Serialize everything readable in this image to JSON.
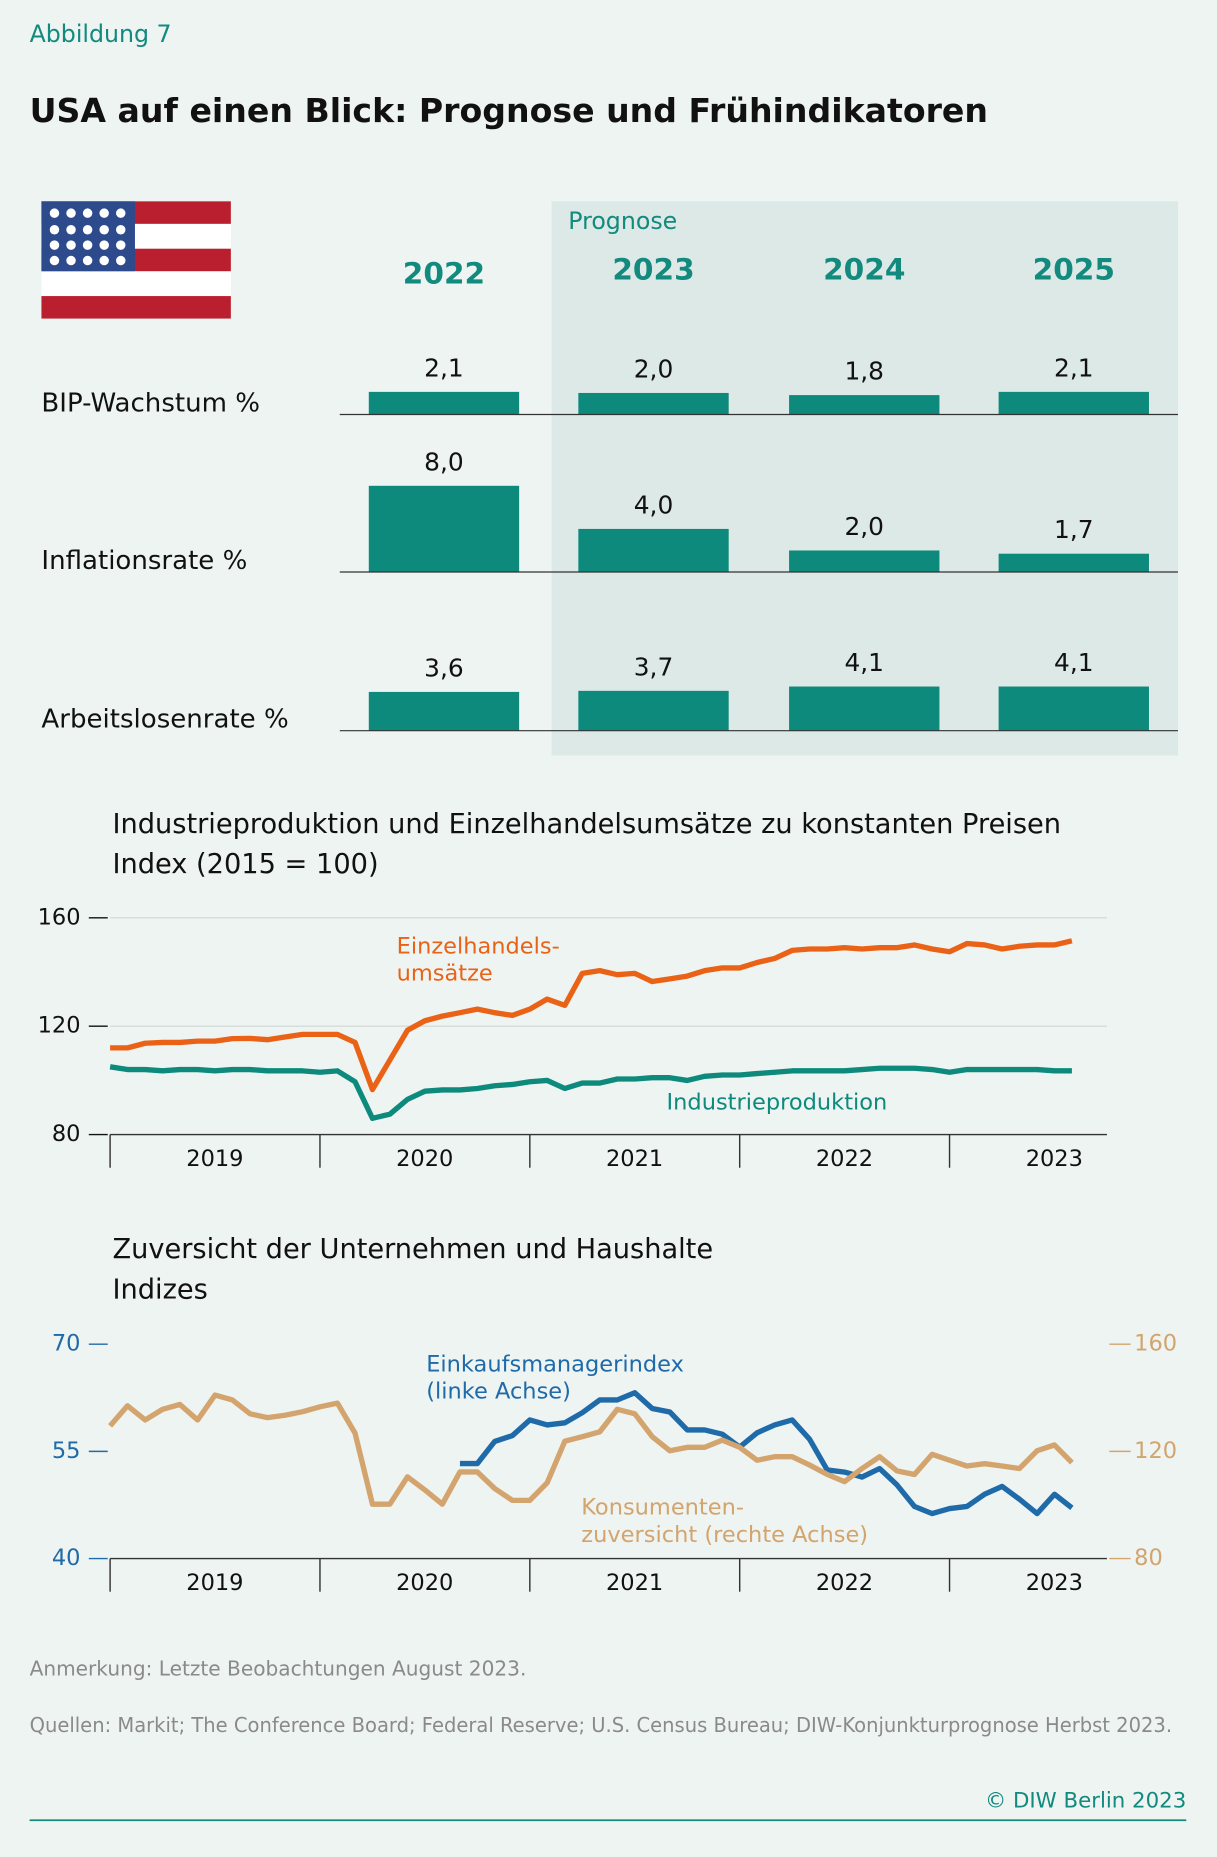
{
  "header": {
    "label": "Abbildung 7",
    "title": "USA auf einen Blick: Prognose und Frühindikatoren"
  },
  "chart_data": [
    {
      "type": "bar-panel",
      "forecast_label": "Prognose",
      "categories": [
        "2022",
        "2023",
        "2024",
        "2025"
      ],
      "color": "#0d8a7c",
      "series": [
        {
          "name": "BIP-Wachstum %",
          "values": [
            2.1,
            2.0,
            1.8,
            2.1
          ],
          "value_labels": [
            "2,1",
            "2,0",
            "1,8",
            "2,1"
          ]
        },
        {
          "name": "Inflationsrate %",
          "values": [
            8.0,
            4.0,
            2.0,
            1.7
          ],
          "value_labels": [
            "8,0",
            "4,0",
            "2,0",
            "1,7"
          ]
        },
        {
          "name": "Arbeitslosenrate %",
          "values": [
            3.6,
            3.7,
            4.1,
            4.1
          ],
          "value_labels": [
            "3,6",
            "3,7",
            "4,1",
            "4,1"
          ]
        }
      ]
    },
    {
      "type": "line",
      "title": "Industrieproduktion und Einzelhandelsumsätze zu konstanten Preisen",
      "subtitle": "Index (2015 = 100)",
      "x": [
        2019,
        2019.083,
        2019.167,
        2019.25,
        2019.333,
        2019.417,
        2019.5,
        2019.583,
        2019.667,
        2019.75,
        2019.833,
        2019.917,
        2020,
        2020.083,
        2020.167,
        2020.25,
        2020.333,
        2020.417,
        2020.5,
        2020.583,
        2020.667,
        2020.75,
        2020.833,
        2020.917,
        2021,
        2021.083,
        2021.167,
        2021.25,
        2021.333,
        2021.417,
        2021.5,
        2021.583,
        2021.667,
        2021.75,
        2021.833,
        2021.917,
        2022,
        2022.083,
        2022.167,
        2022.25,
        2022.333,
        2022.417,
        2022.5,
        2022.583,
        2022.667,
        2022.75,
        2022.833,
        2022.917,
        2023,
        2023.083,
        2023.167,
        2023.25,
        2023.333,
        2023.417,
        2023.5,
        2023.583
      ],
      "xlim": [
        2019,
        2023.75
      ],
      "xticks": [
        {
          "value": 2019,
          "label": "2019"
        },
        {
          "value": 2020,
          "label": "2020"
        },
        {
          "value": 2021,
          "label": "2021"
        },
        {
          "value": 2022,
          "label": "2022"
        },
        {
          "value": 2023,
          "label": "2023"
        }
      ],
      "ylim": [
        80,
        160
      ],
      "yticks": [
        80,
        120,
        160
      ],
      "grid": true,
      "series": [
        {
          "name": "Einzelhandels-\numsätze",
          "color": "#ea6216",
          "values": [
            112,
            112,
            113.7,
            114,
            114,
            114.5,
            114.5,
            115.4,
            115.5,
            115,
            116,
            117,
            117,
            117,
            114,
            96.6,
            107.5,
            118.5,
            122,
            123.7,
            125,
            126.3,
            125,
            124,
            126.3,
            130,
            127.7,
            139.5,
            140.5,
            139,
            139.5,
            136.5,
            137.5,
            138.5,
            140.5,
            141.5,
            141.5,
            143.5,
            145,
            148,
            148.5,
            148.5,
            149,
            148.5,
            149,
            149,
            150,
            148.5,
            147.5,
            150.5,
            150,
            148.5,
            149.5,
            150,
            150,
            151.5
          ]
        },
        {
          "name": "Industrieproduktion",
          "color": "#0d8a7c",
          "values": [
            105,
            104,
            104,
            103.5,
            104,
            104,
            103.5,
            104,
            104,
            103.5,
            103.5,
            103.5,
            103,
            103.5,
            99.5,
            86,
            87.5,
            93,
            96,
            96.5,
            96.5,
            97,
            98,
            98.5,
            99.5,
            100,
            97,
            99,
            99,
            100.5,
            100.5,
            101,
            101,
            100,
            101.5,
            102,
            102,
            102.5,
            103,
            103.5,
            103.5,
            103.5,
            103.5,
            104,
            104.5,
            104.5,
            104.5,
            104,
            103,
            104,
            104,
            104,
            104,
            104,
            103.5,
            103.5
          ]
        }
      ]
    },
    {
      "type": "line",
      "title": "Zuversicht der Unternehmen und Haushalte",
      "subtitle": "Indizes",
      "x": [
        2019,
        2019.083,
        2019.167,
        2019.25,
        2019.333,
        2019.417,
        2019.5,
        2019.583,
        2019.667,
        2019.75,
        2019.833,
        2019.917,
        2020,
        2020.083,
        2020.167,
        2020.25,
        2020.333,
        2020.417,
        2020.5,
        2020.583,
        2020.667,
        2020.75,
        2020.833,
        2020.917,
        2021,
        2021.083,
        2021.167,
        2021.25,
        2021.333,
        2021.417,
        2021.5,
        2021.583,
        2021.667,
        2021.75,
        2021.833,
        2021.917,
        2022,
        2022.083,
        2022.167,
        2022.25,
        2022.333,
        2022.417,
        2022.5,
        2022.583,
        2022.667,
        2022.75,
        2022.833,
        2022.917,
        2023,
        2023.083,
        2023.167,
        2023.25,
        2023.333,
        2023.417,
        2023.5,
        2023.583
      ],
      "xlim": [
        2019,
        2023.75
      ],
      "xticks": [
        {
          "value": 2019,
          "label": "2019"
        },
        {
          "value": 2020,
          "label": "2020"
        },
        {
          "value": 2021,
          "label": "2021"
        },
        {
          "value": 2022,
          "label": "2022"
        },
        {
          "value": 2023,
          "label": "2023"
        }
      ],
      "ylim": [
        40,
        70
      ],
      "yticks": [
        40,
        55,
        70
      ],
      "y2lim": [
        80,
        160
      ],
      "y2ticks": [
        80,
        120,
        160
      ],
      "grid": false,
      "series": [
        {
          "name": "Einkaufsmanagerindex\n(linke Achse)",
          "color": "#1f6aa8",
          "values": [
            null,
            null,
            null,
            null,
            null,
            null,
            null,
            null,
            null,
            null,
            null,
            null,
            null,
            null,
            null,
            null,
            null,
            null,
            null,
            null,
            53.3,
            53.3,
            56.4,
            57.2,
            59.4,
            58.7,
            59,
            60.4,
            62.2,
            62.2,
            63.2,
            61,
            60.5,
            58,
            58,
            57.4,
            55.6,
            57.6,
            58.7,
            59.4,
            56.7,
            52.4,
            52.1,
            51.4,
            52.6,
            50.3,
            47.3,
            46.3,
            47,
            47.3,
            49,
            50.1,
            48.3,
            46.3,
            49,
            47.1
          ]
        },
        {
          "name": "Konsumenten-\nzuversicht (rechte Achse)",
          "color": "#d3a46e",
          "axis": "y2",
          "values": [
            129.5,
            137,
            131.7,
            135.7,
            137.5,
            131.7,
            141,
            139.2,
            134,
            132.6,
            133.5,
            134.8,
            136.6,
            138,
            126.8,
            100.3,
            100.3,
            110.5,
            105.6,
            100.3,
            112.3,
            112.3,
            106.1,
            101.7,
            101.7,
            108.3,
            123.8,
            125.5,
            127.3,
            135.7,
            134,
            125.5,
            120.2,
            121.5,
            121.5,
            124.2,
            121.5,
            116.7,
            118,
            118,
            114.9,
            111.4,
            108.7,
            113.6,
            118,
            112.7,
            111.4,
            118.9,
            116.7,
            114.5,
            115.4,
            114.5,
            113.6,
            120.2,
            122.4,
            115.8
          ]
        }
      ]
    }
  ],
  "footer": {
    "note": "Anmerkung: Letzte Beobachtungen August 2023.",
    "sources": "Quellen: Markit; The Conference Board; Federal Reserve; U.S. Census Bureau; DIW-Konjunkturprognose Herbst 2023.",
    "copyright": "© DIW Berlin 2023"
  }
}
